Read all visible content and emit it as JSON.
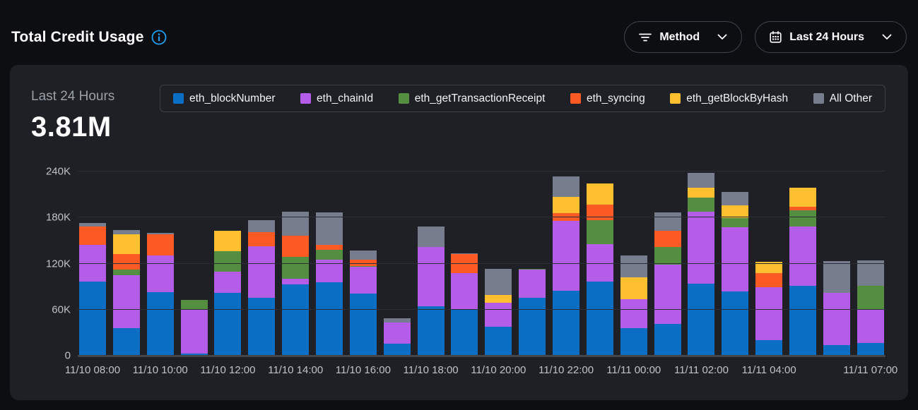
{
  "header": {
    "title": "Total Credit Usage",
    "filter_button": {
      "label": "Method"
    },
    "range_button": {
      "label": "Last 24 Hours"
    }
  },
  "card": {
    "summary": {
      "label": "Last 24 Hours",
      "value": "3.81M"
    }
  },
  "colors": {
    "page_bg": "#0d0e11",
    "card_bg": "#1e2025",
    "accent_info": "#1e9ff2",
    "axis_text": "#bfc3c9",
    "gridline": "#2b2e34"
  },
  "chart_data": {
    "type": "bar",
    "stacked": true,
    "title": "Total Credit Usage",
    "xlabel": "",
    "ylabel": "",
    "ymax": 240000,
    "grid": true,
    "legend_position": "top",
    "y_ticks": [
      {
        "value": 0,
        "label": "0"
      },
      {
        "value": 60000,
        "label": "60K"
      },
      {
        "value": 120000,
        "label": "120K"
      },
      {
        "value": 180000,
        "label": "180K"
      },
      {
        "value": 240000,
        "label": "240K"
      }
    ],
    "categories": [
      "11/10 08:00",
      "11/10 09:00",
      "11/10 10:00",
      "11/10 11:00",
      "11/10 12:00",
      "11/10 13:00",
      "11/10 14:00",
      "11/10 15:00",
      "11/10 16:00",
      "11/10 17:00",
      "11/10 18:00",
      "11/10 19:00",
      "11/10 20:00",
      "11/10 21:00",
      "11/10 22:00",
      "11/10 23:00",
      "11/11 00:00",
      "11/11 01:00",
      "11/11 02:00",
      "11/11 03:00",
      "11/11 04:00",
      "11/11 05:00",
      "11/11 06:00",
      "11/11 07:00"
    ],
    "x_tick_indices": [
      0,
      2,
      4,
      6,
      8,
      10,
      12,
      14,
      16,
      18,
      20,
      23
    ],
    "series": [
      {
        "name": "eth_blockNumber",
        "color": "#0a6ec4",
        "values": [
          97000,
          36000,
          83000,
          3000,
          82000,
          75000,
          93000,
          96000,
          81000,
          16000,
          64000,
          60000,
          38000,
          75000,
          85000,
          97000,
          36000,
          41000,
          94000,
          84000,
          20000,
          91000,
          14000,
          17000
        ]
      },
      {
        "name": "eth_chainId",
        "color": "#b55ce8",
        "values": [
          47000,
          69000,
          48000,
          57000,
          27000,
          68000,
          7000,
          29000,
          35000,
          27000,
          78000,
          48000,
          31000,
          37000,
          91000,
          48000,
          38000,
          78000,
          94000,
          83000,
          69000,
          77000,
          68000,
          43000
        ]
      },
      {
        "name": "eth_getTransactionReceipt",
        "color": "#538e41",
        "values": [
          0,
          7000,
          0,
          13000,
          27000,
          0,
          29000,
          13000,
          1000,
          0,
          0,
          0,
          0,
          1000,
          0,
          32000,
          0,
          23000,
          18000,
          12000,
          0,
          21000,
          0,
          31000
        ]
      },
      {
        "name": "eth_syncing",
        "color": "#fb5a25",
        "values": [
          24000,
          20000,
          27000,
          0,
          0,
          18000,
          27000,
          6000,
          8000,
          0,
          0,
          24000,
          0,
          0,
          10000,
          20000,
          0,
          21000,
          0,
          0,
          19000,
          5000,
          0,
          0
        ]
      },
      {
        "name": "eth_getBlockByHash",
        "color": "#fec02f",
        "values": [
          0,
          26000,
          0,
          0,
          27000,
          0,
          0,
          0,
          0,
          0,
          0,
          0,
          10000,
          0,
          21000,
          27000,
          28000,
          0,
          13000,
          17000,
          14000,
          25000,
          0,
          0
        ]
      },
      {
        "name": "All Other",
        "color": "#767e8d",
        "values": [
          5000,
          6000,
          2000,
          0,
          0,
          16000,
          32000,
          43000,
          12000,
          6000,
          26000,
          1000,
          34000,
          0,
          27000,
          0,
          29000,
          24000,
          19000,
          17000,
          0,
          0,
          41000,
          33000
        ]
      }
    ]
  }
}
